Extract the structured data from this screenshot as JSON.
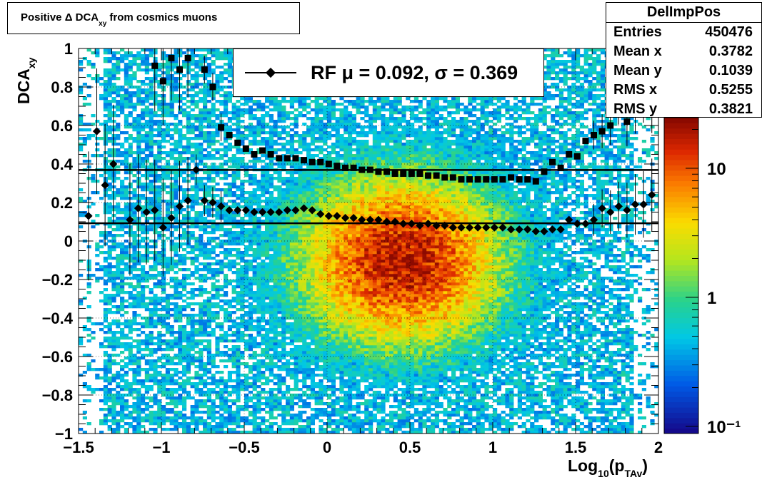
{
  "title": {
    "main": "Positive Δ DCA",
    "sub": "xy",
    "rest": " from cosmics muons"
  },
  "stats": {
    "name": "DelImpPos",
    "rows": [
      {
        "label": "Entries",
        "value": "450476"
      },
      {
        "label": "Mean x",
        "value": "0.3782"
      },
      {
        "label": "Mean y",
        "value": "0.1039"
      },
      {
        "label": "RMS x",
        "value": "0.5255"
      },
      {
        "label": "RMS y",
        "value": "0.3821"
      }
    ]
  },
  "legend": {
    "text": "RF μ =  0.092, σ =   0.369"
  },
  "axes": {
    "ytitle_main": "DCA",
    "ytitle_sub": "xy",
    "xtitle_main": "Log",
    "xtitle_sub1": "10",
    "xtitle_mid": "(p",
    "xtitle_sub2": "TAv",
    "xtitle_end": ")"
  },
  "chart_data": {
    "type": "heatmap",
    "xlim": [
      -1.5,
      2
    ],
    "ylim": [
      -1,
      1
    ],
    "zscale": "log",
    "grid": true,
    "xticks": [
      -1.5,
      -1,
      -0.5,
      0,
      0.5,
      1,
      1.5,
      2
    ],
    "xtick_labels": [
      "−1.5",
      "−1",
      "−0.5",
      "0",
      "0.5",
      "1",
      "1.5",
      "2"
    ],
    "yticks": [
      -1,
      -0.8,
      -0.6,
      -0.4,
      -0.2,
      0,
      0.2,
      0.4,
      0.6,
      0.8,
      1
    ],
    "ytick_labels": [
      "−1",
      "−0.8",
      "−0.6",
      "−0.4",
      "−0.2",
      "0",
      "0.2",
      "0.4",
      "0.6",
      "0.8",
      "1"
    ],
    "ztick_labels": [
      "10",
      "1",
      "10⁻¹"
    ],
    "density_center": {
      "x": 0.45,
      "y": -0.1
    },
    "fit_lines": [
      {
        "y": 0.092
      },
      {
        "y": 0.369
      }
    ],
    "mean_points": {
      "x": [
        -1.44,
        -1.39,
        -1.34,
        -1.29,
        -1.19,
        -1.14,
        -1.09,
        -1.04,
        -0.99,
        -0.94,
        -0.89,
        -0.84,
        -0.79,
        -0.74,
        -0.69,
        -0.64,
        -0.59,
        -0.54,
        -0.49,
        -0.44,
        -0.39,
        -0.34,
        -0.29,
        -0.24,
        -0.19,
        -0.14,
        -0.09,
        -0.04,
        0.01,
        0.06,
        0.11,
        0.16,
        0.21,
        0.26,
        0.31,
        0.36,
        0.41,
        0.46,
        0.51,
        0.56,
        0.61,
        0.66,
        0.71,
        0.76,
        0.81,
        0.86,
        0.91,
        0.96,
        1.01,
        1.06,
        1.11,
        1.16,
        1.21,
        1.26,
        1.31,
        1.36,
        1.41,
        1.46,
        1.51,
        1.56,
        1.61,
        1.66,
        1.71,
        1.76,
        1.81,
        1.86,
        1.91,
        1.96
      ],
      "y": [
        0.13,
        0.57,
        0.29,
        0.4,
        0.11,
        0.17,
        0.15,
        0.16,
        0.07,
        0.12,
        0.18,
        0.21,
        0.37,
        0.21,
        0.2,
        0.18,
        0.16,
        0.16,
        0.16,
        0.15,
        0.15,
        0.15,
        0.15,
        0.16,
        0.16,
        0.17,
        0.16,
        0.14,
        0.13,
        0.13,
        0.12,
        0.12,
        0.11,
        0.11,
        0.11,
        0.1,
        0.1,
        0.09,
        0.09,
        0.08,
        0.09,
        0.08,
        0.08,
        0.07,
        0.07,
        0.07,
        0.07,
        0.07,
        0.07,
        0.07,
        0.06,
        0.06,
        0.06,
        0.05,
        0.05,
        0.06,
        0.06,
        0.11,
        0.09,
        0.09,
        0.11,
        0.17,
        0.15,
        0.18,
        0.16,
        0.19,
        0.19,
        0.24
      ]
    },
    "sigma_points": {
      "x": [
        -1.04,
        -0.99,
        -0.94,
        -0.89,
        -0.84,
        -0.74,
        -0.69,
        -0.64,
        -0.59,
        -0.54,
        -0.49,
        -0.44,
        -0.39,
        -0.34,
        -0.29,
        -0.24,
        -0.19,
        -0.14,
        -0.09,
        -0.04,
        0.01,
        0.06,
        0.11,
        0.16,
        0.21,
        0.26,
        0.31,
        0.36,
        0.41,
        0.46,
        0.51,
        0.56,
        0.61,
        0.66,
        0.71,
        0.76,
        0.81,
        0.86,
        0.91,
        0.96,
        1.01,
        1.06,
        1.11,
        1.16,
        1.21,
        1.26,
        1.31,
        1.36,
        1.41,
        1.46,
        1.51,
        1.56,
        1.61,
        1.66,
        1.71,
        1.76,
        1.81,
        1.86,
        1.91,
        1.96
      ],
      "y": [
        0.91,
        0.83,
        0.95,
        0.89,
        0.95,
        0.89,
        0.8,
        0.59,
        0.55,
        0.51,
        0.48,
        0.45,
        0.47,
        0.45,
        0.43,
        0.43,
        0.43,
        0.42,
        0.41,
        0.41,
        0.4,
        0.39,
        0.38,
        0.38,
        0.37,
        0.37,
        0.36,
        0.36,
        0.35,
        0.35,
        0.35,
        0.35,
        0.34,
        0.34,
        0.33,
        0.33,
        0.32,
        0.32,
        0.32,
        0.32,
        0.32,
        0.32,
        0.33,
        0.32,
        0.32,
        0.31,
        0.36,
        0.41,
        0.38,
        0.45,
        0.44,
        0.52,
        0.55,
        0.57,
        0.6,
        0.72,
        0.62,
        0.7,
        0.77,
        0.73
      ]
    }
  }
}
